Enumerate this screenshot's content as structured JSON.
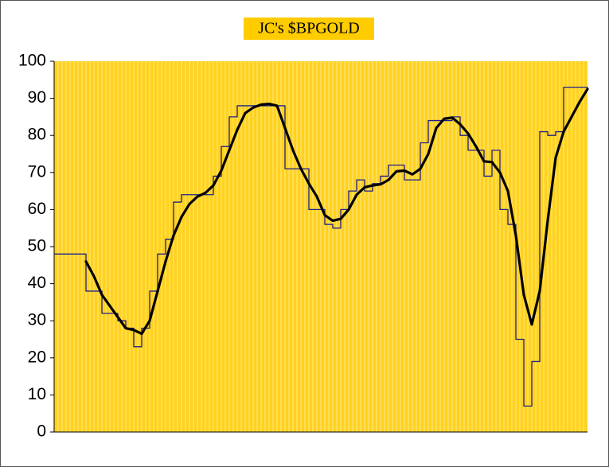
{
  "chart_data": {
    "type": "line",
    "title": "JC's $BPGOLD",
    "ylim": [
      0,
      100
    ],
    "yticks": [
      0,
      10,
      20,
      30,
      40,
      50,
      60,
      70,
      80,
      90,
      100
    ],
    "background": "#ffd21f",
    "grid_color": "#ffe88a",
    "series": [
      {
        "color": "#1f1f8f",
        "width": 1.3,
        "step": true,
        "values": [
          48,
          48,
          48,
          48,
          38,
          38,
          32,
          32,
          30,
          28,
          23,
          28,
          38,
          48,
          52,
          62,
          64,
          64,
          64,
          64,
          69,
          77,
          85,
          88,
          88,
          88,
          88,
          88,
          88,
          71,
          71,
          71,
          60,
          60,
          56,
          55,
          60,
          65,
          68,
          65,
          67,
          69,
          72,
          72,
          68,
          68,
          78,
          84,
          84,
          84,
          85,
          80,
          76,
          76,
          69,
          76,
          60,
          56,
          25,
          7,
          19,
          81,
          80,
          81,
          93,
          93,
          93,
          93
        ]
      },
      {
        "color": "#000000",
        "width": 3.2,
        "step": false,
        "values": [
          null,
          null,
          null,
          null,
          46,
          42,
          37,
          34,
          31,
          28,
          27.5,
          26.5,
          30,
          38,
          46,
          53,
          58,
          61.5,
          63.5,
          64.5,
          66.5,
          70.5,
          76,
          81.5,
          86,
          87.5,
          88.3,
          88.5,
          88,
          82,
          76,
          71,
          67,
          63.5,
          58.5,
          57,
          57.5,
          60,
          64,
          66,
          66.5,
          66.8,
          68,
          70.3,
          70.5,
          69.5,
          71,
          75,
          82,
          84.5,
          84.8,
          83,
          80.5,
          77,
          73,
          72.8,
          70,
          65,
          53,
          37,
          29,
          38,
          57,
          74,
          81,
          85,
          89,
          92.5
        ]
      }
    ]
  }
}
